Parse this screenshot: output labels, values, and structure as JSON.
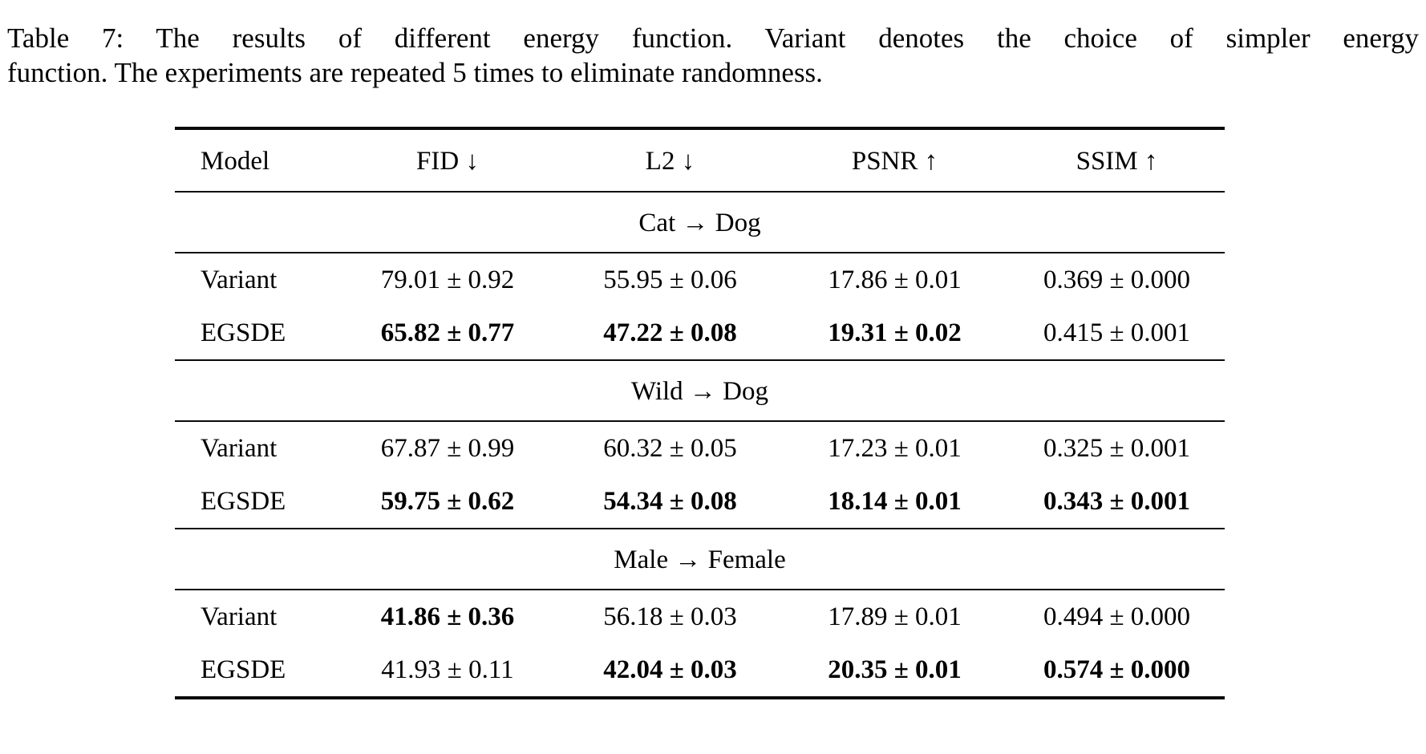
{
  "caption": {
    "line1": "Table 7: The results of different energy function. Variant denotes the choice of simpler energy",
    "line2": "function. The experiments are repeated 5 times to eliminate randomness."
  },
  "table": {
    "columns": [
      "Model",
      "FID ↓",
      "L2 ↓",
      "PSNR ↑",
      "SSIM ↑"
    ],
    "sections": [
      {
        "label": "Cat → Dog",
        "rows": [
          {
            "model": "Variant",
            "cells": [
              {
                "text": "79.01 ± 0.92",
                "bold": false
              },
              {
                "text": "55.95 ± 0.06",
                "bold": false
              },
              {
                "text": "17.86 ± 0.01",
                "bold": false
              },
              {
                "text": "0.369 ± 0.000",
                "bold": false
              }
            ]
          },
          {
            "model": "EGSDE",
            "cells": [
              {
                "text": "65.82 ± 0.77",
                "bold": true
              },
              {
                "text": "47.22 ± 0.08",
                "bold": true
              },
              {
                "text": "19.31 ± 0.02",
                "bold": true
              },
              {
                "text": "0.415 ± 0.001",
                "bold": false
              }
            ]
          }
        ]
      },
      {
        "label": "Wild → Dog",
        "rows": [
          {
            "model": "Variant",
            "cells": [
              {
                "text": "67.87 ± 0.99",
                "bold": false
              },
              {
                "text": "60.32 ± 0.05",
                "bold": false
              },
              {
                "text": "17.23 ± 0.01",
                "bold": false
              },
              {
                "text": "0.325 ± 0.001",
                "bold": false
              }
            ]
          },
          {
            "model": "EGSDE",
            "cells": [
              {
                "text": "59.75 ± 0.62",
                "bold": true
              },
              {
                "text": "54.34 ± 0.08",
                "bold": true
              },
              {
                "text": "18.14 ± 0.01",
                "bold": true
              },
              {
                "text": "0.343 ± 0.001",
                "bold": true
              }
            ]
          }
        ]
      },
      {
        "label": "Male → Female",
        "rows": [
          {
            "model": "Variant",
            "cells": [
              {
                "text": "41.86 ± 0.36",
                "bold": true
              },
              {
                "text": "56.18 ± 0.03",
                "bold": false
              },
              {
                "text": "17.89 ± 0.01",
                "bold": false
              },
              {
                "text": "0.494 ± 0.000",
                "bold": false
              }
            ]
          },
          {
            "model": "EGSDE",
            "cells": [
              {
                "text": "41.93 ± 0.11",
                "bold": false
              },
              {
                "text": "42.04 ± 0.03",
                "bold": true
              },
              {
                "text": "20.35 ± 0.01",
                "bold": true
              },
              {
                "text": "0.574 ± 0.000",
                "bold": true
              }
            ]
          }
        ]
      }
    ]
  }
}
